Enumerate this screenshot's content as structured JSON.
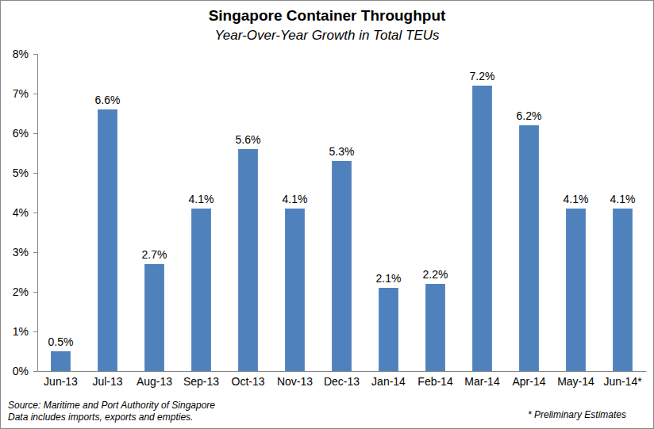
{
  "chart_data": {
    "type": "bar",
    "title": "Singapore Container Throughput",
    "subtitle": "Year-Over-Year Growth in Total TEUs",
    "categories": [
      "Jun-13",
      "Jul-13",
      "Aug-13",
      "Sep-13",
      "Oct-13",
      "Nov-13",
      "Dec-13",
      "Jan-14",
      "Feb-14",
      "Mar-14",
      "Apr-14",
      "May-14",
      "Jun-14*"
    ],
    "values": [
      0.5,
      6.6,
      2.7,
      4.1,
      5.6,
      4.1,
      5.3,
      2.1,
      2.2,
      7.2,
      6.2,
      4.1,
      4.1
    ],
    "value_labels": [
      "0.5%",
      "6.6%",
      "2.7%",
      "4.1%",
      "5.6%",
      "4.1%",
      "5.3%",
      "2.1%",
      "2.2%",
      "7.2%",
      "6.2%",
      "4.1%",
      "4.1%"
    ],
    "color": "#4f81bd",
    "ylim": [
      0,
      8
    ],
    "yticks": [
      {
        "value": 0,
        "label": "0%"
      },
      {
        "value": 1,
        "label": "1%"
      },
      {
        "value": 2,
        "label": "2%"
      },
      {
        "value": 3,
        "label": "3%"
      },
      {
        "value": 4,
        "label": "4%"
      },
      {
        "value": 5,
        "label": "5%"
      },
      {
        "value": 6,
        "label": "6%"
      },
      {
        "value": 7,
        "label": "7%"
      },
      {
        "value": 8,
        "label": "8%"
      }
    ],
    "grid": false,
    "data_labels": true,
    "annotations": [
      "Source: Maritime and Port Authority of Singapore",
      "Data includes imports, exports and empties.",
      "* Preliminary Estimates"
    ]
  }
}
